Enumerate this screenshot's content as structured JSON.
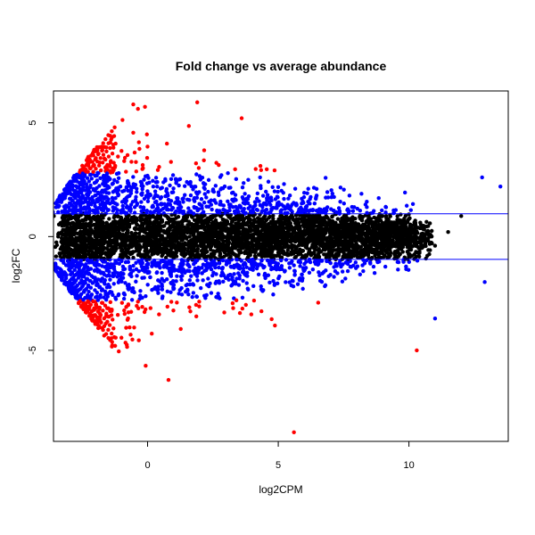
{
  "chart_data": {
    "type": "scatter",
    "title": "Fold change vs average abundance",
    "xlabel": "log2CPM",
    "ylabel": "log2FC",
    "xlim": [
      -3.6,
      13.8
    ],
    "ylim": [
      -9.0,
      6.4
    ],
    "x_ticks": [
      0,
      5,
      10
    ],
    "y_ticks": [
      -5,
      0,
      5
    ],
    "reference_lines": [
      1,
      -1
    ],
    "grid": false,
    "legend": "none",
    "colors": {
      "not_significant": "#000000",
      "significant_moderate": "#0000ff",
      "significant_high": "#ff0000",
      "reference_line": "#0000ff"
    },
    "highlight_points": [
      {
        "x": 5.6,
        "y": -8.6,
        "group": "significant_high"
      },
      {
        "x": 1.9,
        "y": 5.9,
        "group": "significant_high"
      },
      {
        "x": -0.1,
        "y": 5.7,
        "group": "significant_high"
      },
      {
        "x": 3.6,
        "y": 5.2,
        "group": "significant_high"
      },
      {
        "x": 13.5,
        "y": 2.2,
        "group": "significant_moderate"
      },
      {
        "x": 12.8,
        "y": 2.6,
        "group": "significant_moderate"
      },
      {
        "x": 12.9,
        "y": -2.0,
        "group": "significant_moderate"
      },
      {
        "x": 10.3,
        "y": -5.0,
        "group": "significant_high"
      },
      {
        "x": 11.0,
        "y": -3.6,
        "group": "significant_moderate"
      },
      {
        "x": 0.8,
        "y": -6.3,
        "group": "significant_high"
      },
      {
        "x": 12.0,
        "y": 0.9,
        "group": "not_significant"
      },
      {
        "x": 11.5,
        "y": 0.2,
        "group": "not_significant"
      },
      {
        "x": 11.0,
        "y": -0.4,
        "group": "not_significant"
      }
    ]
  }
}
